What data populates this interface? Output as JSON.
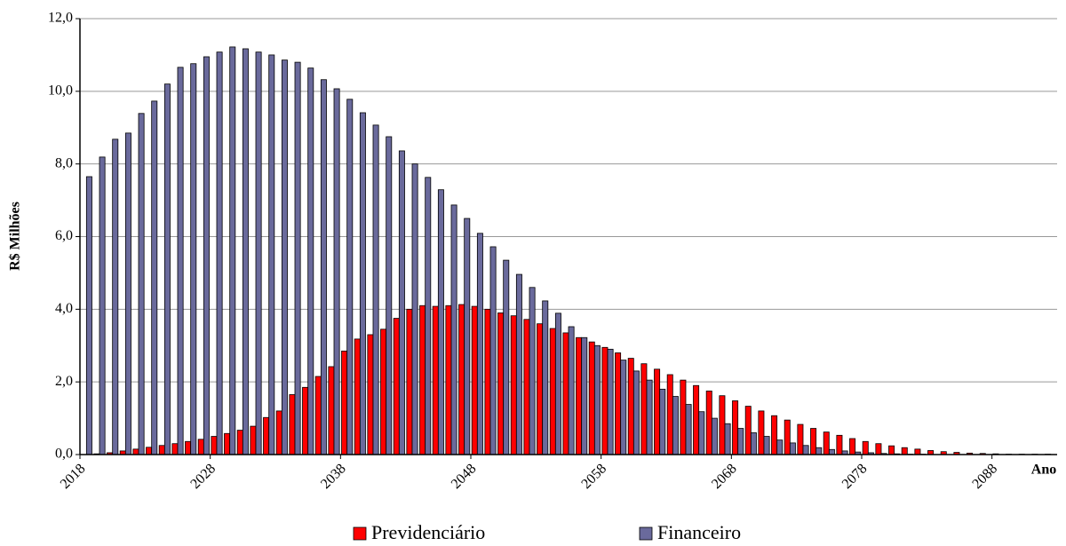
{
  "chart_data": {
    "type": "bar",
    "y_label": "R$ Milhões",
    "x_label": "Ano",
    "categories": [
      "2018",
      null,
      null,
      null,
      null,
      null,
      null,
      null,
      null,
      null,
      "2028",
      null,
      null,
      null,
      null,
      null,
      null,
      null,
      null,
      null,
      "2038",
      null,
      null,
      null,
      null,
      null,
      null,
      null,
      null,
      null,
      "2048",
      null,
      null,
      null,
      null,
      null,
      null,
      null,
      null,
      null,
      "2058",
      null,
      null,
      null,
      null,
      null,
      null,
      null,
      null,
      null,
      "2068",
      null,
      null,
      null,
      null,
      null,
      null,
      null,
      null,
      null,
      "2078",
      null,
      null,
      null,
      null,
      null,
      null,
      null,
      null,
      null,
      "2088",
      null,
      null,
      null,
      null
    ],
    "series": [
      {
        "name": "Previdenciário",
        "color": "#ff0000",
        "values": [
          0,
          0.02,
          0.05,
          0.1,
          0.15,
          0.2,
          0.25,
          0.3,
          0.36,
          0.42,
          0.5,
          0.58,
          0.67,
          0.78,
          1.02,
          1.2,
          1.65,
          1.85,
          2.15,
          2.42,
          2.85,
          3.18,
          3.3,
          3.45,
          3.75,
          4.0,
          4.1,
          4.08,
          4.1,
          4.13,
          4.08,
          4.0,
          3.9,
          3.82,
          3.72,
          3.6,
          3.47,
          3.35,
          3.22,
          3.1,
          2.95,
          2.8,
          2.65,
          2.5,
          2.35,
          2.2,
          2.05,
          1.9,
          1.75,
          1.62,
          1.48,
          1.33,
          1.2,
          1.07,
          0.95,
          0.83,
          0.72,
          0.62,
          0.53,
          0.44,
          0.36,
          0.3,
          0.24,
          0.19,
          0.15,
          0.11,
          0.08,
          0.06,
          0.04,
          0.03,
          0.02,
          0.01,
          0.01,
          0.01,
          0.01
        ]
      },
      {
        "name": "Financeiro",
        "color": "#6a6a9c",
        "values": [
          7.65,
          8.19,
          8.68,
          8.85,
          9.39,
          9.73,
          10.2,
          10.66,
          10.76,
          10.95,
          11.08,
          11.22,
          11.17,
          11.08,
          11.0,
          10.86,
          10.8,
          10.64,
          10.32,
          10.07,
          9.78,
          9.41,
          9.07,
          8.75,
          8.36,
          8.0,
          7.63,
          7.29,
          6.87,
          6.5,
          6.09,
          5.72,
          5.35,
          4.96,
          4.6,
          4.23,
          3.89,
          3.52,
          3.22,
          3.0,
          2.9,
          2.6,
          2.3,
          2.05,
          1.8,
          1.6,
          1.38,
          1.18,
          1.0,
          0.85,
          0.72,
          0.6,
          0.5,
          0.4,
          0.32,
          0.25,
          0.19,
          0.14,
          0.1,
          0.07,
          0.05,
          0.03,
          0.02,
          0.01,
          0.01,
          0,
          0,
          0,
          0,
          0,
          0,
          0,
          0,
          0,
          0
        ]
      }
    ],
    "ylim": [
      0,
      12
    ],
    "yticks": [
      {
        "value": 0,
        "label": "0,0"
      },
      {
        "value": 2,
        "label": "2,0"
      },
      {
        "value": 4,
        "label": "4,0"
      },
      {
        "value": 6,
        "label": "6,0"
      },
      {
        "value": 8,
        "label": "8,0"
      },
      {
        "value": 10,
        "label": "10,0"
      },
      {
        "value": 12,
        "label": "12,0"
      }
    ],
    "grid": true,
    "legend": "bottom"
  }
}
